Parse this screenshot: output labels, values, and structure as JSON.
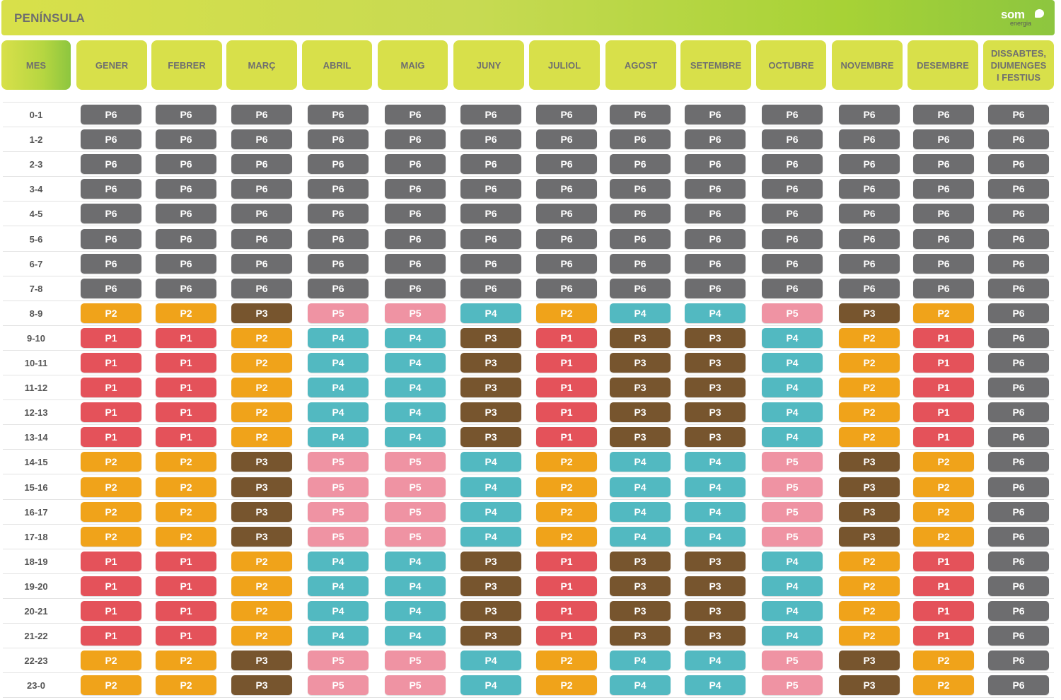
{
  "header": {
    "title": "PENÍNSULA",
    "logo_text": "som",
    "logo_subtext": "energia"
  },
  "columns": {
    "first": "MES",
    "months": [
      "GENER",
      "FEBRER",
      "MARÇ",
      "ABRIL",
      "MAIG",
      "JUNY",
      "JULIOL",
      "AGOST",
      "SETEMBRE",
      "OCTUBRE",
      "NOVEMBRE",
      "DESEMBRE"
    ],
    "holidays": [
      "DISSABTES,",
      "DIUMENGES",
      "I FESTIUS"
    ]
  },
  "period_colors": {
    "P1": "#e4525a",
    "P2": "#f0a31a",
    "P3": "#77552e",
    "P4": "#52b9c1",
    "P5": "#ef93a3",
    "P6": "#6d6d6f"
  },
  "rows": [
    {
      "hour": "0-1",
      "periods": [
        "P6",
        "P6",
        "P6",
        "P6",
        "P6",
        "P6",
        "P6",
        "P6",
        "P6",
        "P6",
        "P6",
        "P6",
        "P6"
      ]
    },
    {
      "hour": "1-2",
      "periods": [
        "P6",
        "P6",
        "P6",
        "P6",
        "P6",
        "P6",
        "P6",
        "P6",
        "P6",
        "P6",
        "P6",
        "P6",
        "P6"
      ]
    },
    {
      "hour": "2-3",
      "periods": [
        "P6",
        "P6",
        "P6",
        "P6",
        "P6",
        "P6",
        "P6",
        "P6",
        "P6",
        "P6",
        "P6",
        "P6",
        "P6"
      ]
    },
    {
      "hour": "3-4",
      "periods": [
        "P6",
        "P6",
        "P6",
        "P6",
        "P6",
        "P6",
        "P6",
        "P6",
        "P6",
        "P6",
        "P6",
        "P6",
        "P6"
      ]
    },
    {
      "hour": "4-5",
      "periods": [
        "P6",
        "P6",
        "P6",
        "P6",
        "P6",
        "P6",
        "P6",
        "P6",
        "P6",
        "P6",
        "P6",
        "P6",
        "P6"
      ]
    },
    {
      "hour": "5-6",
      "periods": [
        "P6",
        "P6",
        "P6",
        "P6",
        "P6",
        "P6",
        "P6",
        "P6",
        "P6",
        "P6",
        "P6",
        "P6",
        "P6"
      ]
    },
    {
      "hour": "6-7",
      "periods": [
        "P6",
        "P6",
        "P6",
        "P6",
        "P6",
        "P6",
        "P6",
        "P6",
        "P6",
        "P6",
        "P6",
        "P6",
        "P6"
      ]
    },
    {
      "hour": "7-8",
      "periods": [
        "P6",
        "P6",
        "P6",
        "P6",
        "P6",
        "P6",
        "P6",
        "P6",
        "P6",
        "P6",
        "P6",
        "P6",
        "P6"
      ]
    },
    {
      "hour": "8-9",
      "periods": [
        "P2",
        "P2",
        "P3",
        "P5",
        "P5",
        "P4",
        "P2",
        "P4",
        "P4",
        "P5",
        "P3",
        "P2",
        "P6"
      ]
    },
    {
      "hour": "9-10",
      "periods": [
        "P1",
        "P1",
        "P2",
        "P4",
        "P4",
        "P3",
        "P1",
        "P3",
        "P3",
        "P4",
        "P2",
        "P1",
        "P6"
      ]
    },
    {
      "hour": "10-11",
      "periods": [
        "P1",
        "P1",
        "P2",
        "P4",
        "P4",
        "P3",
        "P1",
        "P3",
        "P3",
        "P4",
        "P2",
        "P1",
        "P6"
      ]
    },
    {
      "hour": "11-12",
      "periods": [
        "P1",
        "P1",
        "P2",
        "P4",
        "P4",
        "P3",
        "P1",
        "P3",
        "P3",
        "P4",
        "P2",
        "P1",
        "P6"
      ]
    },
    {
      "hour": "12-13",
      "periods": [
        "P1",
        "P1",
        "P2",
        "P4",
        "P4",
        "P3",
        "P1",
        "P3",
        "P3",
        "P4",
        "P2",
        "P1",
        "P6"
      ]
    },
    {
      "hour": "13-14",
      "periods": [
        "P1",
        "P1",
        "P2",
        "P4",
        "P4",
        "P3",
        "P1",
        "P3",
        "P3",
        "P4",
        "P2",
        "P1",
        "P6"
      ]
    },
    {
      "hour": "14-15",
      "periods": [
        "P2",
        "P2",
        "P3",
        "P5",
        "P5",
        "P4",
        "P2",
        "P4",
        "P4",
        "P5",
        "P3",
        "P2",
        "P6"
      ]
    },
    {
      "hour": "15-16",
      "periods": [
        "P2",
        "P2",
        "P3",
        "P5",
        "P5",
        "P4",
        "P2",
        "P4",
        "P4",
        "P5",
        "P3",
        "P2",
        "P6"
      ]
    },
    {
      "hour": "16-17",
      "periods": [
        "P2",
        "P2",
        "P3",
        "P5",
        "P5",
        "P4",
        "P2",
        "P4",
        "P4",
        "P5",
        "P3",
        "P2",
        "P6"
      ]
    },
    {
      "hour": "17-18",
      "periods": [
        "P2",
        "P2",
        "P3",
        "P5",
        "P5",
        "P4",
        "P2",
        "P4",
        "P4",
        "P5",
        "P3",
        "P2",
        "P6"
      ]
    },
    {
      "hour": "18-19",
      "periods": [
        "P1",
        "P1",
        "P2",
        "P4",
        "P4",
        "P3",
        "P1",
        "P3",
        "P3",
        "P4",
        "P2",
        "P1",
        "P6"
      ]
    },
    {
      "hour": "19-20",
      "periods": [
        "P1",
        "P1",
        "P2",
        "P4",
        "P4",
        "P3",
        "P1",
        "P3",
        "P3",
        "P4",
        "P2",
        "P1",
        "P6"
      ]
    },
    {
      "hour": "20-21",
      "periods": [
        "P1",
        "P1",
        "P2",
        "P4",
        "P4",
        "P3",
        "P1",
        "P3",
        "P3",
        "P4",
        "P2",
        "P1",
        "P6"
      ]
    },
    {
      "hour": "21-22",
      "periods": [
        "P1",
        "P1",
        "P2",
        "P4",
        "P4",
        "P3",
        "P1",
        "P3",
        "P3",
        "P4",
        "P2",
        "P1",
        "P6"
      ]
    },
    {
      "hour": "22-23",
      "periods": [
        "P2",
        "P2",
        "P3",
        "P5",
        "P5",
        "P4",
        "P2",
        "P4",
        "P4",
        "P5",
        "P3",
        "P2",
        "P6"
      ]
    },
    {
      "hour": "23-0",
      "periods": [
        "P2",
        "P2",
        "P3",
        "P5",
        "P5",
        "P4",
        "P2",
        "P4",
        "P4",
        "P5",
        "P3",
        "P2",
        "P6"
      ]
    }
  ]
}
